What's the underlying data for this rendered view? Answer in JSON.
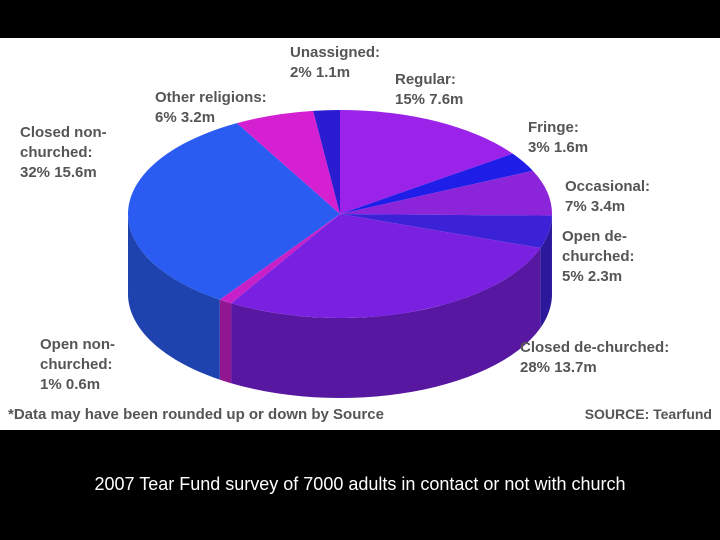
{
  "chart_data": {
    "type": "pie",
    "categories": [
      "Regular:",
      "Fringe:",
      "Occasional:",
      "Open de-churched:",
      "Closed de-churched:",
      "Open non-churched:",
      "Closed non-churched:",
      "Other religions:",
      "Unassigned:"
    ],
    "values": [
      15,
      3,
      7,
      5,
      28,
      1,
      32,
      6,
      2
    ],
    "value_labels": [
      "15% 7.6m",
      "3% 1.6m",
      "7% 3.4m",
      "5% 2.3m",
      "28% 13.7m",
      "1% 0.6m",
      "32% 15.6m",
      "6% 3.2m",
      "2% 1.1m"
    ],
    "colors": [
      "#9b22e8",
      "#1e1ee8",
      "#8c24da",
      "#3c22d6",
      "#7a20e0",
      "#c820c8",
      "#2a5cf2",
      "#d420d0",
      "#2a1cd0"
    ],
    "note": "*Data may have been rounded up or down by Source",
    "source": "SOURCE: Tearfund"
  },
  "caption": "2007 Tear Fund survey of 7000 adults in contact or not with church"
}
